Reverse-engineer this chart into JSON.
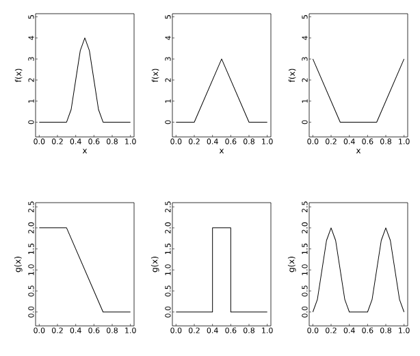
{
  "chart_data": [
    {
      "type": "line",
      "xlabel": "x",
      "ylabel": "f(x)",
      "color": "#000000",
      "x": [
        0,
        0.3,
        0.35,
        0.4,
        0.45,
        0.5,
        0.55,
        0.6,
        0.65,
        0.7,
        1
      ],
      "values": [
        0,
        0,
        0.6,
        2,
        3.4,
        4,
        3.4,
        2,
        0.6,
        0,
        0
      ],
      "xlim": [
        -0.04,
        1.04
      ],
      "ylim": [
        -0.7,
        5.15
      ],
      "xticks": [
        {
          "value": 0,
          "label": "0.0"
        },
        {
          "value": 0.2,
          "label": "0.2"
        },
        {
          "value": 0.4,
          "label": "0.4"
        },
        {
          "value": 0.6,
          "label": "0.6"
        },
        {
          "value": 0.8,
          "label": "0.8"
        },
        {
          "value": 1,
          "label": "1.0"
        }
      ],
      "yticks": [
        0,
        1,
        2,
        3,
        4,
        5
      ]
    },
    {
      "type": "line",
      "xlabel": "x",
      "ylabel": "f(x)",
      "color": "#000000",
      "x": [
        0,
        0.2,
        0.5,
        0.8,
        1
      ],
      "values": [
        0,
        0,
        3,
        0,
        0
      ],
      "xlim": [
        -0.04,
        1.04
      ],
      "ylim": [
        -0.7,
        5.15
      ],
      "xticks": [
        {
          "value": 0,
          "label": "0.0"
        },
        {
          "value": 0.2,
          "label": "0.2"
        },
        {
          "value": 0.4,
          "label": "0.4"
        },
        {
          "value": 0.6,
          "label": "0.6"
        },
        {
          "value": 0.8,
          "label": "0.8"
        },
        {
          "value": 1,
          "label": "1.0"
        }
      ],
      "yticks": [
        0,
        1,
        2,
        3,
        4,
        5
      ]
    },
    {
      "type": "line",
      "xlabel": "x",
      "ylabel": "f(x)",
      "color": "#000000",
      "x": [
        0,
        0.3,
        0.7,
        1
      ],
      "values": [
        3,
        0,
        0,
        3
      ],
      "xlim": [
        -0.04,
        1.04
      ],
      "ylim": [
        -0.7,
        5.15
      ],
      "xticks": [
        {
          "value": 0,
          "label": "0.0"
        },
        {
          "value": 0.2,
          "label": "0.2"
        },
        {
          "value": 0.4,
          "label": "0.4"
        },
        {
          "value": 0.6,
          "label": "0.6"
        },
        {
          "value": 0.8,
          "label": "0.8"
        },
        {
          "value": 1,
          "label": "1.0"
        }
      ],
      "yticks": [
        0,
        1,
        2,
        3,
        4,
        5
      ]
    },
    {
      "type": "line",
      "ylabel": "g(x)",
      "color": "#000000",
      "x": [
        0,
        0.3,
        0.7,
        1
      ],
      "values": [
        2,
        2,
        0,
        0
      ],
      "xlim": [
        -0.04,
        1.04
      ],
      "ylim": [
        -0.33,
        2.6
      ],
      "xticks": [
        {
          "value": 0,
          "label": "0.0"
        },
        {
          "value": 0.2,
          "label": "0.2"
        },
        {
          "value": 0.4,
          "label": "0.4"
        },
        {
          "value": 0.6,
          "label": "0.6"
        },
        {
          "value": 0.8,
          "label": "0.8"
        },
        {
          "value": 1,
          "label": "1.0"
        }
      ],
      "yticks": [
        {
          "value": 0,
          "label": "0.0"
        },
        {
          "value": 0.5,
          "label": "0.5"
        },
        {
          "value": 1,
          "label": "1.0"
        },
        {
          "value": 1.5,
          "label": "1.5"
        },
        {
          "value": 2,
          "label": "2.0"
        },
        {
          "value": 2.5,
          "label": "2.5"
        }
      ]
    },
    {
      "type": "line",
      "ylabel": "g(x)",
      "color": "#000000",
      "x": [
        0,
        0.4,
        0.4,
        0.6,
        0.6,
        1
      ],
      "values": [
        0,
        0,
        2,
        2,
        0,
        0
      ],
      "xlim": [
        -0.04,
        1.04
      ],
      "ylim": [
        -0.33,
        2.6
      ],
      "xticks": [
        {
          "value": 0,
          "label": "0.0"
        },
        {
          "value": 0.2,
          "label": "0.2"
        },
        {
          "value": 0.4,
          "label": "0.4"
        },
        {
          "value": 0.6,
          "label": "0.6"
        },
        {
          "value": 0.8,
          "label": "0.8"
        },
        {
          "value": 1,
          "label": "1.0"
        }
      ],
      "yticks": [
        {
          "value": 0,
          "label": "0.0"
        },
        {
          "value": 0.5,
          "label": "0.5"
        },
        {
          "value": 1,
          "label": "1.0"
        },
        {
          "value": 1.5,
          "label": "1.5"
        },
        {
          "value": 2,
          "label": "2.0"
        },
        {
          "value": 2.5,
          "label": "2.5"
        }
      ]
    },
    {
      "type": "line",
      "ylabel": "g(x)",
      "color": "#000000",
      "x": [
        0,
        0.05,
        0.1,
        0.15,
        0.2,
        0.25,
        0.3,
        0.35,
        0.4,
        0.6,
        0.65,
        0.7,
        0.75,
        0.8,
        0.85,
        0.9,
        0.95,
        1
      ],
      "values": [
        0,
        0.3,
        1,
        1.7,
        2,
        1.7,
        1,
        0.3,
        0,
        0,
        0.3,
        1,
        1.7,
        2,
        1.7,
        1,
        0.3,
        0
      ],
      "xlim": [
        -0.04,
        1.04
      ],
      "ylim": [
        -0.33,
        2.6
      ],
      "xticks": [
        {
          "value": 0,
          "label": "0.0"
        },
        {
          "value": 0.2,
          "label": "0.2"
        },
        {
          "value": 0.4,
          "label": "0.4"
        },
        {
          "value": 0.6,
          "label": "0.6"
        },
        {
          "value": 0.8,
          "label": "0.8"
        },
        {
          "value": 1,
          "label": "1.0"
        }
      ],
      "yticks": [
        {
          "value": 0,
          "label": "0.0"
        },
        {
          "value": 0.5,
          "label": "0.5"
        },
        {
          "value": 1,
          "label": "1.0"
        },
        {
          "value": 1.5,
          "label": "1.5"
        },
        {
          "value": 2,
          "label": "2.0"
        },
        {
          "value": 2.5,
          "label": "2.5"
        }
      ]
    }
  ]
}
